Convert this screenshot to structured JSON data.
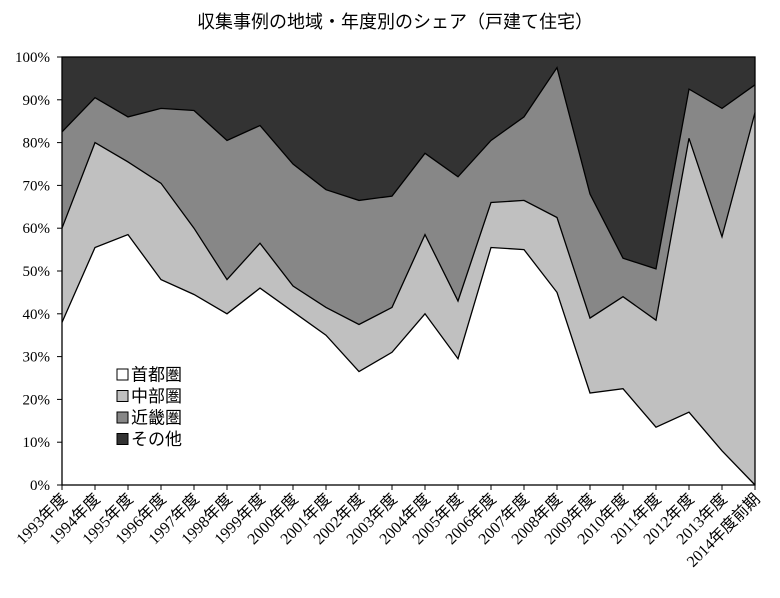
{
  "chart_data": {
    "type": "area",
    "stacked": "percent",
    "title": "収集事例の地域・年度別のシェア（戸建て住宅）",
    "categories": [
      "1993年度",
      "1994年度",
      "1995年度",
      "1996年度",
      "1997年度",
      "1998年度",
      "1999年度",
      "2000年度",
      "2001年度",
      "2002年度",
      "2003年度",
      "2004年度",
      "2005年度",
      "2006年度",
      "2007年度",
      "2008年度",
      "2009年度",
      "2010年度",
      "2011年度",
      "2012年度",
      "2013年度",
      "2014年度前期"
    ],
    "series": [
      {
        "name": "首都圏",
        "color": "#ffffff",
        "values": [
          38,
          55.5,
          58.5,
          48,
          44.5,
          40,
          46,
          40.5,
          35,
          26.5,
          31,
          40,
          29.5,
          55.5,
          55,
          45,
          21.5,
          22.5,
          13.5,
          17,
          8,
          0
        ]
      },
      {
        "name": "中部圏",
        "color": "#c0c0c0",
        "values": [
          22,
          24.5,
          17,
          22.5,
          15.5,
          8,
          10.5,
          6,
          6.5,
          11,
          10.5,
          18.5,
          13.5,
          10.5,
          11.5,
          17.5,
          17.5,
          21.5,
          25,
          64,
          50,
          87
        ]
      },
      {
        "name": "近畿圏",
        "color": "#878787",
        "values": [
          22.5,
          10.5,
          10.5,
          17.5,
          27.5,
          32.5,
          27.5,
          28.5,
          27.5,
          29,
          26,
          19,
          29,
          14.5,
          19.5,
          35,
          29,
          9,
          12,
          11.5,
          30,
          6.5
        ]
      },
      {
        "name": "その他",
        "color": "#333333",
        "values": [
          17.5,
          9.5,
          14,
          12,
          12.5,
          19.5,
          16,
          25,
          31,
          33.5,
          32.5,
          22.5,
          28,
          19.5,
          14,
          2.5,
          32,
          47,
          49.5,
          7.5,
          12,
          6.5
        ]
      }
    ],
    "ylim": [
      0,
      100
    ],
    "yticks": [
      0,
      10,
      20,
      30,
      40,
      50,
      60,
      70,
      80,
      90,
      100
    ],
    "ytick_labels": [
      "0%",
      "10%",
      "20%",
      "30%",
      "40%",
      "50%",
      "60%",
      "70%",
      "80%",
      "90%",
      "100%"
    ],
    "grid": false,
    "legend": "inside-bottom-left"
  }
}
